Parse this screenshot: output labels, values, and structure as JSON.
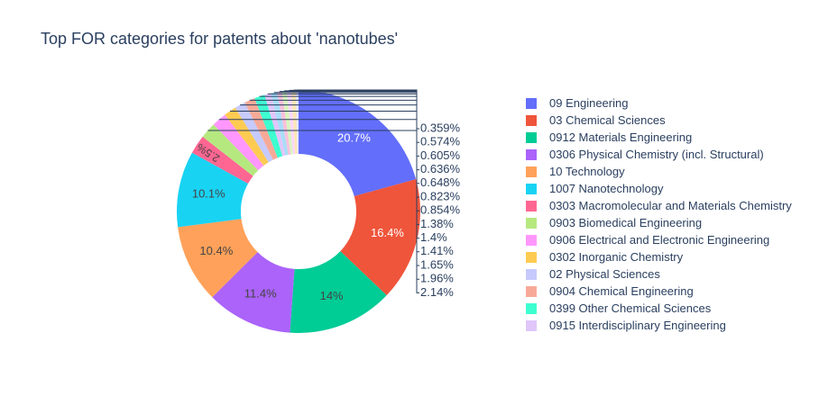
{
  "chart_data": {
    "type": "pie",
    "hole": true,
    "title": "Top FOR categories for patents about 'nanotubes'",
    "legend_position": "right",
    "slices": [
      {
        "label": "09 Engineering",
        "value": 20.7,
        "text": "20.7%",
        "color": "#636efa"
      },
      {
        "label": "03 Chemical Sciences",
        "value": 16.4,
        "text": "16.4%",
        "color": "#ef553b"
      },
      {
        "label": "0912 Materials Engineering",
        "value": 14.0,
        "text": "14%",
        "color": "#00cc96"
      },
      {
        "label": "0306 Physical Chemistry (incl. Structural)",
        "value": 11.4,
        "text": "11.4%",
        "color": "#ab63fa"
      },
      {
        "label": "10 Technology",
        "value": 10.4,
        "text": "10.4%",
        "color": "#ffa15a"
      },
      {
        "label": "1007 Nanotechnology",
        "value": 10.1,
        "text": "10.1%",
        "color": "#19d3f3"
      },
      {
        "label": "0303 Macromolecular and Materials Chemistry",
        "value": 2.5,
        "text": "2.5%",
        "color": "#ff6692"
      },
      {
        "label": "0903 Biomedical Engineering",
        "value": 2.14,
        "text": "2.14%",
        "color": "#b6e880"
      },
      {
        "label": "0906 Electrical and Electronic Engineering",
        "value": 1.96,
        "text": "1.96%",
        "color": "#ff97ff"
      },
      {
        "label": "0302 Inorganic Chemistry",
        "value": 1.65,
        "text": "1.65%",
        "color": "#fecb52"
      },
      {
        "label": "02 Physical Sciences",
        "value": 1.41,
        "text": "1.41%",
        "color": "#c6cafd"
      },
      {
        "label": "0904 Chemical Engineering",
        "value": 1.4,
        "text": "1.4%",
        "color": "#f7aa98"
      },
      {
        "label": "0399 Other Chemical Sciences",
        "value": 1.38,
        "text": "1.38%",
        "color": "#3effd0"
      },
      {
        "label": "0915 Interdisciplinary Engineering",
        "value": 0.854,
        "text": "0.854%",
        "color": "#e0c6fa"
      },
      {
        "label": "",
        "value": 0.823,
        "text": "0.823%",
        "color": "#a9ddf8"
      },
      {
        "label": "",
        "value": 0.648,
        "text": "0.648%",
        "color": "#f9c0dc"
      },
      {
        "label": "",
        "value": 0.636,
        "text": "0.636%",
        "color": "#d8f5be"
      },
      {
        "label": "",
        "value": 0.605,
        "text": "0.605%",
        "color": "#fbd7fb"
      },
      {
        "label": "",
        "value": 0.574,
        "text": "0.574%",
        "color": "#fde6b6"
      },
      {
        "label": "",
        "value": 0.359,
        "text": "0.359%",
        "color": "#e4e5fd"
      }
    ]
  }
}
